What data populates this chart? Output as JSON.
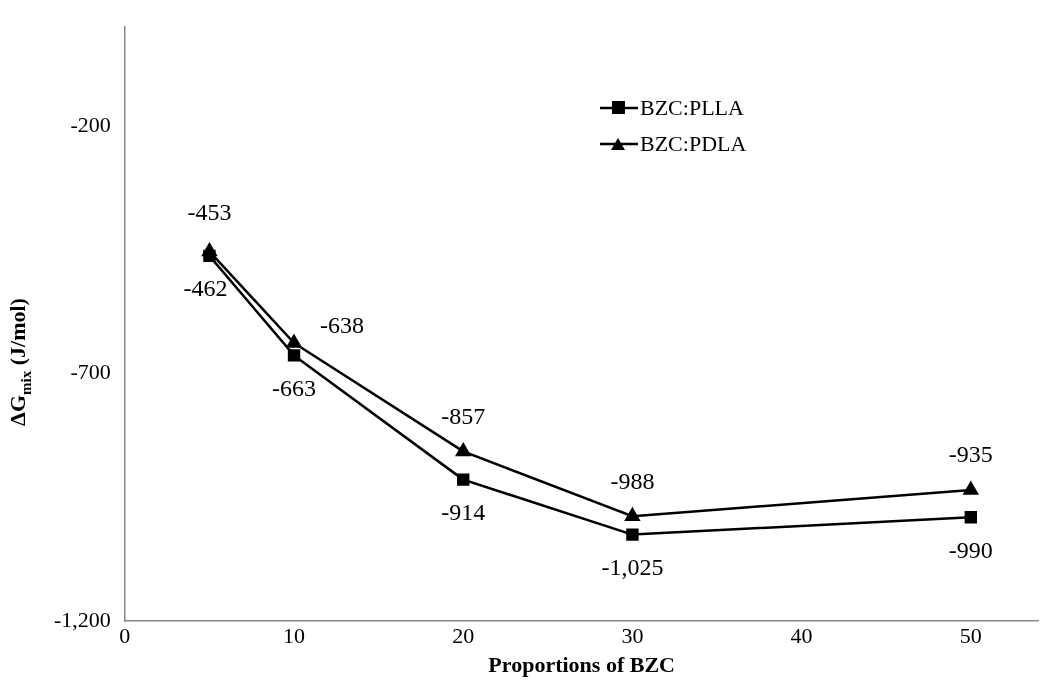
{
  "chart_data": {
    "type": "line",
    "xlabel": "Proportions of BZC",
    "ylabel": "ΔG$_{mix}$ (J/mol)",
    "x": [
      5,
      10,
      20,
      30,
      50
    ],
    "series": [
      {
        "name": "BZC:PLLA",
        "color": "#000000",
        "marker": "square",
        "values": [
          -462,
          -663,
          -914,
          -1025,
          -990
        ],
        "value_labels": [
          "-462",
          "-663",
          "-914",
          "-1,025",
          "-990"
        ]
      },
      {
        "name": "BZC:PDLA",
        "color": "#000000",
        "marker": "triangle",
        "values": [
          -453,
          -638,
          -857,
          -988,
          -935
        ],
        "value_labels": [
          "-453",
          "-638",
          "-857",
          "-988",
          "-935"
        ]
      }
    ],
    "xlim": [
      0,
      54
    ],
    "xticks": [
      0,
      10,
      20,
      30,
      40,
      50
    ],
    "ylim": [
      -1200,
      0
    ],
    "yticks": [
      {
        "value": -1200,
        "label": "-1,200"
      },
      -700,
      -200
    ],
    "grid": false,
    "legend": "top right",
    "line_style": "solid"
  }
}
